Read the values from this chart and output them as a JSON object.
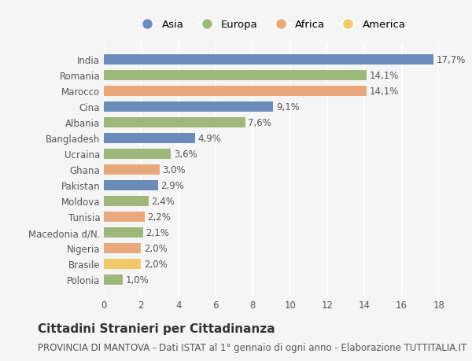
{
  "countries": [
    "India",
    "Romania",
    "Marocco",
    "Cina",
    "Albania",
    "Bangladesh",
    "Ucraina",
    "Ghana",
    "Pakistan",
    "Moldova",
    "Tunisia",
    "Macedonia d/N.",
    "Nigeria",
    "Brasile",
    "Polonia"
  ],
  "values": [
    17.7,
    14.1,
    14.1,
    9.1,
    7.6,
    4.9,
    3.6,
    3.0,
    2.9,
    2.4,
    2.2,
    2.1,
    2.0,
    2.0,
    1.0
  ],
  "labels": [
    "17,7%",
    "14,1%",
    "14,1%",
    "9,1%",
    "7,6%",
    "4,9%",
    "3,6%",
    "3,0%",
    "2,9%",
    "2,4%",
    "2,2%",
    "2,1%",
    "2,0%",
    "2,0%",
    "1,0%"
  ],
  "continents": [
    "Asia",
    "Europa",
    "Africa",
    "Asia",
    "Europa",
    "Asia",
    "Europa",
    "Africa",
    "Asia",
    "Europa",
    "Africa",
    "Europa",
    "Africa",
    "America",
    "Europa"
  ],
  "continent_colors": {
    "Asia": "#6b8cba",
    "Europa": "#9db87a",
    "Africa": "#e8a87c",
    "America": "#f0c96a"
  },
  "legend_order": [
    "Asia",
    "Europa",
    "Africa",
    "America"
  ],
  "title": "Cittadini Stranieri per Cittadinanza",
  "subtitle": "PROVINCIA DI MANTOVA - Dati ISTAT al 1° gennaio di ogni anno - Elaborazione TUTTITALIA.IT",
  "xlim": [
    0,
    18
  ],
  "xticks": [
    0,
    2,
    4,
    6,
    8,
    10,
    12,
    14,
    16,
    18
  ],
  "bg_color": "#f5f5f5",
  "grid_color": "#ffffff",
  "bar_height": 0.65,
  "title_fontsize": 11,
  "subtitle_fontsize": 8.5,
  "label_fontsize": 8.5,
  "tick_fontsize": 8.5,
  "legend_fontsize": 9.5
}
